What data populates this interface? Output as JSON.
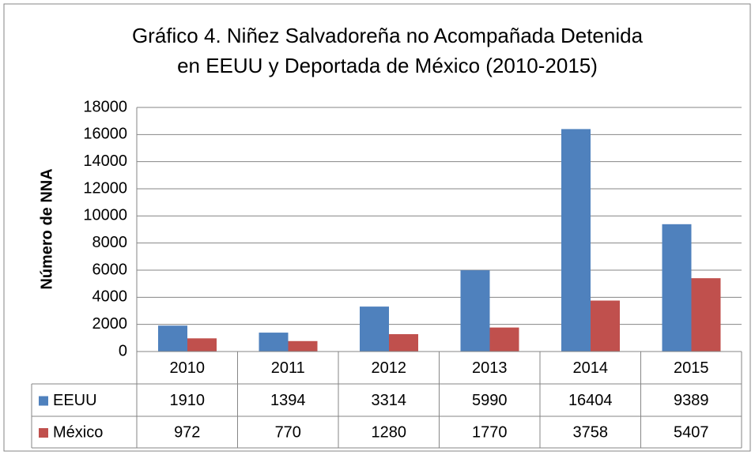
{
  "chart_data": {
    "type": "bar",
    "title": [
      "Gráfico 4.  Niñez Salvadoreña no Acompañada Detenida",
      "en EEUU  y Deportada de México (2010-2015)"
    ],
    "y_label": "Número de NNA",
    "categories": [
      "2010",
      "2011",
      "2012",
      "2013",
      "2014",
      "2015"
    ],
    "series": [
      {
        "name": "EEUU",
        "color": "#4f81bd",
        "values": [
          1910,
          1394,
          3314,
          5990,
          16404,
          9389
        ]
      },
      {
        "name": "México",
        "color": "#c0504d",
        "values": [
          972,
          770,
          1280,
          1770,
          3758,
          5407
        ]
      }
    ],
    "ylim": [
      0,
      18000
    ],
    "yticks": [
      0,
      2000,
      4000,
      6000,
      8000,
      10000,
      12000,
      14000,
      16000,
      18000
    ],
    "grid": true,
    "data_table": true
  }
}
